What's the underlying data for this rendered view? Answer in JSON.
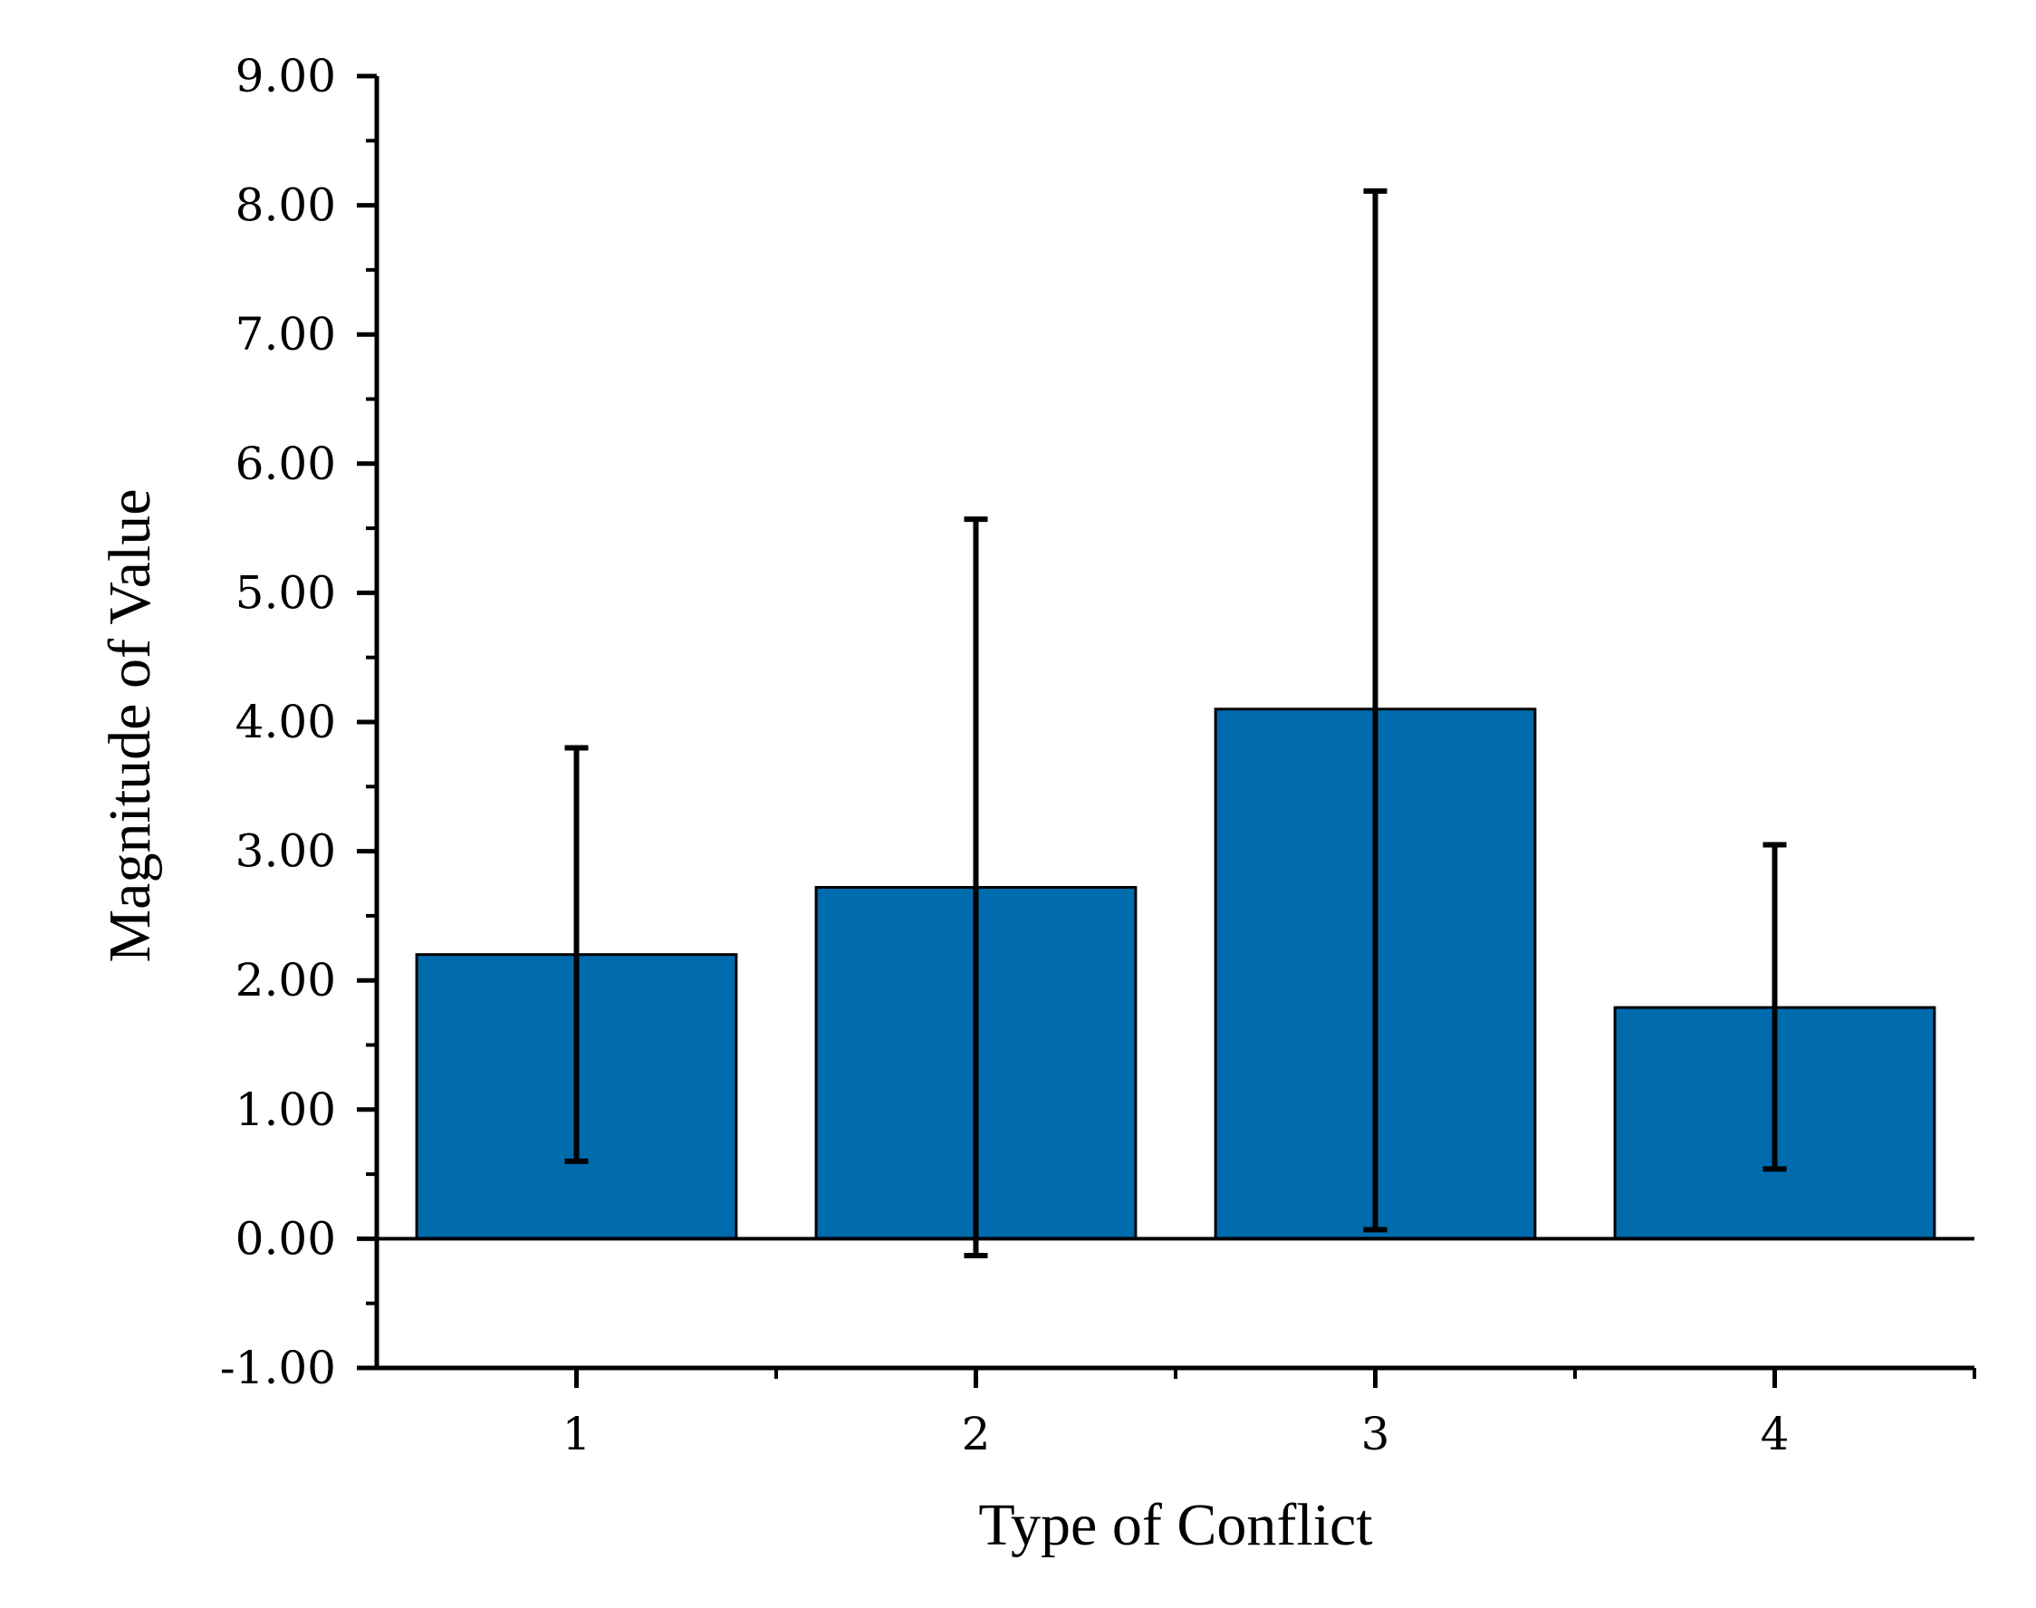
{
  "chart_data": {
    "type": "bar",
    "title": "",
    "xlabel": "Type of Conflict",
    "ylabel": "Magnitude of Value",
    "categories": [
      "1",
      "2",
      "3",
      "4"
    ],
    "values": [
      2.2,
      2.72,
      4.1,
      1.79
    ],
    "error_bars": {
      "lower": [
        0.6,
        -0.13,
        0.07,
        0.54
      ],
      "upper": [
        3.8,
        5.57,
        8.11,
        3.05
      ]
    },
    "ylim": [
      -1.0,
      9.0
    ],
    "yticks": [
      "-1.00",
      "0.00",
      "1.00",
      "2.00",
      "3.00",
      "4.00",
      "5.00",
      "6.00",
      "7.00",
      "8.00",
      "9.00"
    ],
    "ytick_values": [
      -1,
      0,
      1,
      2,
      3,
      4,
      5,
      6,
      7,
      8,
      9
    ],
    "bar_color": "#006BAD",
    "grid": false,
    "legend": "none"
  }
}
